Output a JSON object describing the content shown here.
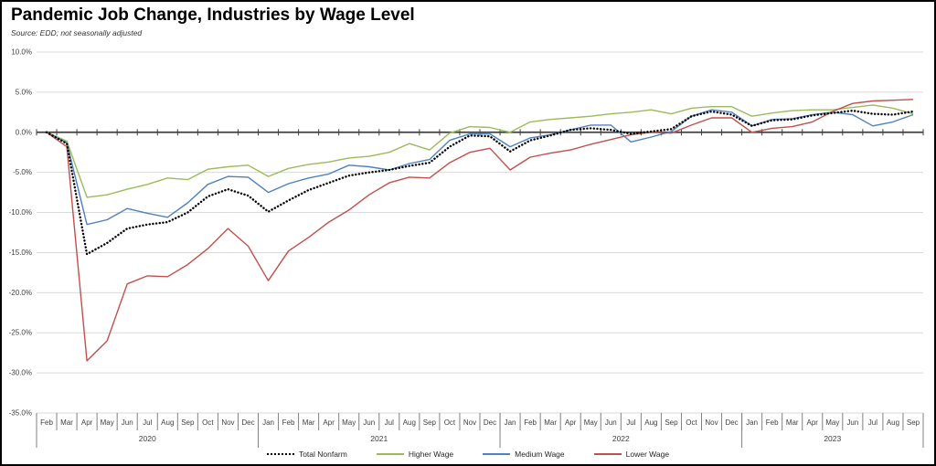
{
  "header": {
    "title": "Pandemic Job Change, Industries by Wage Level",
    "source": "Source:  EDD; not seasonally adjusted"
  },
  "chart_data": {
    "type": "line",
    "title": "Pandemic Job Change, Industries by Wage Level",
    "subtitle": "Source:  EDD; not seasonally adjusted",
    "xlabel": "",
    "ylabel": "",
    "y_axis": {
      "min": -35,
      "max": 10,
      "step": 5,
      "tick_format": "0.0%"
    },
    "grid": true,
    "legend_position": "bottom",
    "months": [
      "Feb",
      "Mar",
      "Apr",
      "May",
      "Jun",
      "Jul",
      "Aug",
      "Sep",
      "Oct",
      "Nov",
      "Dec",
      "Jan",
      "Feb",
      "Mar",
      "Apr",
      "May",
      "Jun",
      "Jul",
      "Aug",
      "Sep",
      "Oct",
      "Nov",
      "Dec",
      "Jan",
      "Feb",
      "Mar",
      "Apr",
      "May",
      "Jun",
      "Jul",
      "Aug",
      "Sep",
      "Oct",
      "Nov",
      "Dec",
      "Jan",
      "Feb",
      "Mar",
      "Apr",
      "May",
      "Jun",
      "Jul",
      "Aug",
      "Sep"
    ],
    "year_groups": [
      {
        "label": "2020",
        "months": 11
      },
      {
        "label": "2021",
        "months": 12
      },
      {
        "label": "2022",
        "months": 12
      },
      {
        "label": "2023",
        "months": 9
      }
    ],
    "series": [
      {
        "name": "Total Nonfarm",
        "color": "#000000",
        "style": "dotted",
        "values": [
          0.0,
          -1.4,
          -15.2,
          -13.8,
          -12.0,
          -11.5,
          -11.2,
          -10.0,
          -8.0,
          -7.1,
          -7.9,
          -9.9,
          -8.5,
          -7.2,
          -6.3,
          -5.4,
          -5.0,
          -4.7,
          -4.2,
          -3.8,
          -1.8,
          -0.4,
          -0.5,
          -2.4,
          -1.0,
          -0.4,
          0.3,
          0.5,
          0.3,
          -0.2,
          0.1,
          0.4,
          2.0,
          2.6,
          2.2,
          0.8,
          1.5,
          1.6,
          2.1,
          2.4,
          2.7,
          2.3,
          2.2,
          2.6
        ]
      },
      {
        "name": "Higher Wage",
        "color": "#9BBB59",
        "style": "solid",
        "values": [
          0.0,
          -1.1,
          -8.1,
          -7.8,
          -7.1,
          -6.5,
          -5.7,
          -5.9,
          -4.6,
          -4.3,
          -4.1,
          -5.5,
          -4.5,
          -4.0,
          -3.7,
          -3.2,
          -3.0,
          -2.5,
          -1.4,
          -2.2,
          -0.1,
          0.7,
          0.6,
          0.0,
          1.3,
          1.6,
          1.8,
          2.0,
          2.3,
          2.5,
          2.8,
          2.3,
          3.0,
          3.2,
          3.2,
          2.0,
          2.4,
          2.7,
          2.8,
          2.8,
          3.1,
          3.4,
          3.0,
          2.3
        ]
      },
      {
        "name": "Medium Wage",
        "color": "#4F81BD",
        "style": "solid",
        "values": [
          0.0,
          -1.3,
          -11.5,
          -10.9,
          -9.5,
          -10.1,
          -10.6,
          -8.8,
          -6.5,
          -5.5,
          -5.6,
          -7.5,
          -6.4,
          -5.7,
          -5.2,
          -4.1,
          -4.3,
          -4.7,
          -3.9,
          -3.4,
          -1.0,
          -0.2,
          -0.2,
          -1.8,
          -0.7,
          -0.3,
          0.3,
          0.9,
          0.9,
          -1.2,
          -0.6,
          0.1,
          2.0,
          2.8,
          2.5,
          0.8,
          1.6,
          1.7,
          2.2,
          2.5,
          2.2,
          0.8,
          1.3,
          2.2
        ]
      },
      {
        "name": "Lower Wage",
        "color": "#C0504D",
        "style": "solid",
        "values": [
          0.0,
          -1.8,
          -28.5,
          -26.0,
          -18.9,
          -17.9,
          -18.0,
          -16.5,
          -14.5,
          -12.0,
          -14.2,
          -18.5,
          -14.8,
          -13.1,
          -11.2,
          -9.7,
          -7.8,
          -6.3,
          -5.6,
          -5.7,
          -3.8,
          -2.5,
          -2.0,
          -4.7,
          -3.1,
          -2.6,
          -2.2,
          -1.5,
          -0.9,
          -0.3,
          0.0,
          -0.1,
          0.9,
          1.8,
          1.8,
          0.0,
          0.5,
          0.7,
          1.3,
          2.6,
          3.6,
          3.9,
          4.0,
          4.1
        ]
      }
    ],
    "colors": {
      "gridline": "#D9D9D9",
      "axis": "#404040",
      "axis_text": "#404040",
      "table_line": "#808080"
    }
  }
}
